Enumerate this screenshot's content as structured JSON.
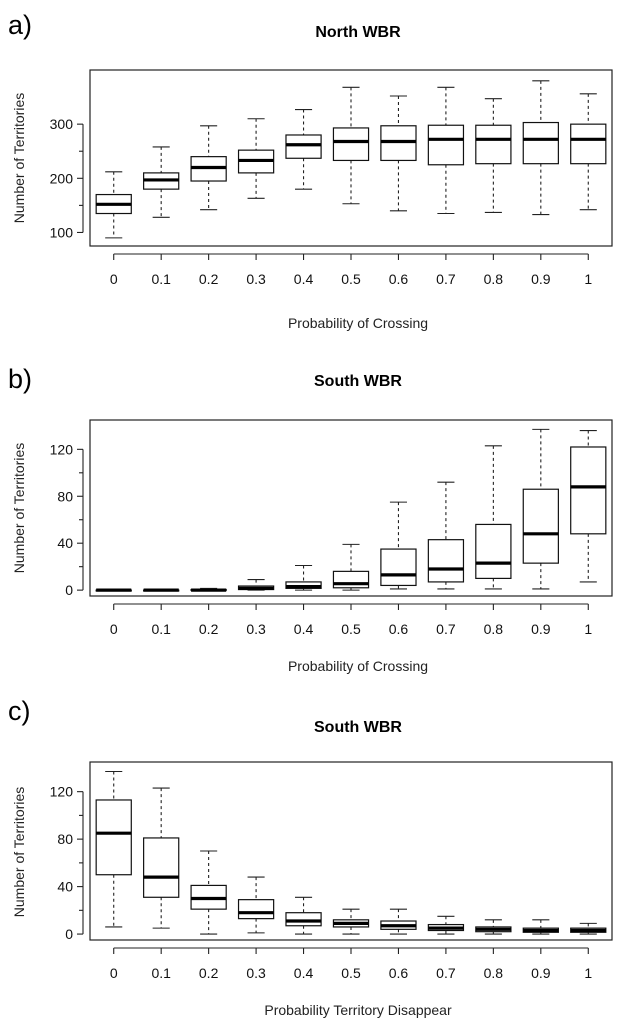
{
  "chart_data": [
    {
      "type": "box",
      "panel_label": "a)",
      "title": "North WBR",
      "xlabel": "Probability of Crossing",
      "ylabel": "Number of Territories",
      "ylim": [
        75,
        400
      ],
      "yticks": [
        100,
        200,
        300
      ],
      "categories": [
        "0",
        "0.1",
        "0.2",
        "0.3",
        "0.4",
        "0.5",
        "0.6",
        "0.7",
        "0.8",
        "0.9",
        "1"
      ],
      "boxes": [
        {
          "min": 90,
          "q1": 135,
          "median": 152,
          "q3": 170,
          "max": 212
        },
        {
          "min": 128,
          "q1": 180,
          "median": 197,
          "q3": 210,
          "max": 258
        },
        {
          "min": 142,
          "q1": 195,
          "median": 220,
          "q3": 240,
          "max": 297
        },
        {
          "min": 163,
          "q1": 210,
          "median": 233,
          "q3": 252,
          "max": 310
        },
        {
          "min": 180,
          "q1": 237,
          "median": 262,
          "q3": 280,
          "max": 327
        },
        {
          "min": 153,
          "q1": 233,
          "median": 268,
          "q3": 293,
          "max": 368
        },
        {
          "min": 140,
          "q1": 233,
          "median": 268,
          "q3": 297,
          "max": 352
        },
        {
          "min": 135,
          "q1": 225,
          "median": 272,
          "q3": 298,
          "max": 368
        },
        {
          "min": 137,
          "q1": 227,
          "median": 272,
          "q3": 298,
          "max": 347
        },
        {
          "min": 133,
          "q1": 227,
          "median": 272,
          "q3": 303,
          "max": 380
        },
        {
          "min": 142,
          "q1": 227,
          "median": 272,
          "q3": 300,
          "max": 356
        }
      ]
    },
    {
      "type": "box",
      "panel_label": "b)",
      "title": "South WBR",
      "xlabel": "Probability of Crossing",
      "ylabel": "Number of Territories",
      "ylim": [
        -5,
        145
      ],
      "yticks": [
        0,
        40,
        80,
        120
      ],
      "categories": [
        "0",
        "0.1",
        "0.2",
        "0.3",
        "0.4",
        "0.5",
        "0.6",
        "0.7",
        "0.8",
        "0.9",
        "1"
      ],
      "boxes": [
        {
          "min": 0,
          "q1": 0,
          "median": 0,
          "q3": 0,
          "max": 0
        },
        {
          "min": 0,
          "q1": 0,
          "median": 0,
          "q3": 0,
          "max": 0
        },
        {
          "min": 0,
          "q1": 0,
          "median": 0,
          "q3": 0.5,
          "max": 1.5
        },
        {
          "min": 0,
          "q1": 0.5,
          "median": 1.5,
          "q3": 3.5,
          "max": 9
        },
        {
          "min": 0,
          "q1": 1.5,
          "median": 3,
          "q3": 7,
          "max": 21
        },
        {
          "min": 0,
          "q1": 2,
          "median": 5.5,
          "q3": 16,
          "max": 39
        },
        {
          "min": 1,
          "q1": 4,
          "median": 13,
          "q3": 35,
          "max": 75
        },
        {
          "min": 1,
          "q1": 7,
          "median": 18,
          "q3": 43,
          "max": 92
        },
        {
          "min": 1,
          "q1": 10,
          "median": 23,
          "q3": 56,
          "max": 123
        },
        {
          "min": 1,
          "q1": 23,
          "median": 48,
          "q3": 86,
          "max": 137
        },
        {
          "min": 7,
          "q1": 48,
          "median": 88,
          "q3": 122,
          "max": 136
        }
      ]
    },
    {
      "type": "box",
      "panel_label": "c)",
      "title": "South WBR",
      "xlabel": "Probability Territory Disappear",
      "ylabel": "Number of Territories",
      "ylim": [
        -5,
        145
      ],
      "yticks": [
        0,
        40,
        80,
        120
      ],
      "categories": [
        "0",
        "0.1",
        "0.2",
        "0.3",
        "0.4",
        "0.5",
        "0.6",
        "0.7",
        "0.8",
        "0.9",
        "1"
      ],
      "boxes": [
        {
          "min": 6,
          "q1": 50,
          "median": 85,
          "q3": 113,
          "max": 137
        },
        {
          "min": 5,
          "q1": 31,
          "median": 48,
          "q3": 81,
          "max": 123
        },
        {
          "min": 0,
          "q1": 21,
          "median": 30,
          "q3": 41,
          "max": 70
        },
        {
          "min": 1,
          "q1": 13,
          "median": 18,
          "q3": 29,
          "max": 48
        },
        {
          "min": 0,
          "q1": 7,
          "median": 11,
          "q3": 18,
          "max": 31
        },
        {
          "min": 0,
          "q1": 6,
          "median": 9,
          "q3": 12,
          "max": 21
        },
        {
          "min": 0,
          "q1": 4,
          "median": 7,
          "q3": 11,
          "max": 21
        },
        {
          "min": 0,
          "q1": 3,
          "median": 5,
          "q3": 8,
          "max": 15
        },
        {
          "min": 0,
          "q1": 2,
          "median": 4,
          "q3": 6,
          "max": 12
        },
        {
          "min": 0,
          "q1": 1.5,
          "median": 3,
          "q3": 5,
          "max": 12
        },
        {
          "min": 0,
          "q1": 1.5,
          "median": 3,
          "q3": 5,
          "max": 9
        }
      ]
    }
  ]
}
